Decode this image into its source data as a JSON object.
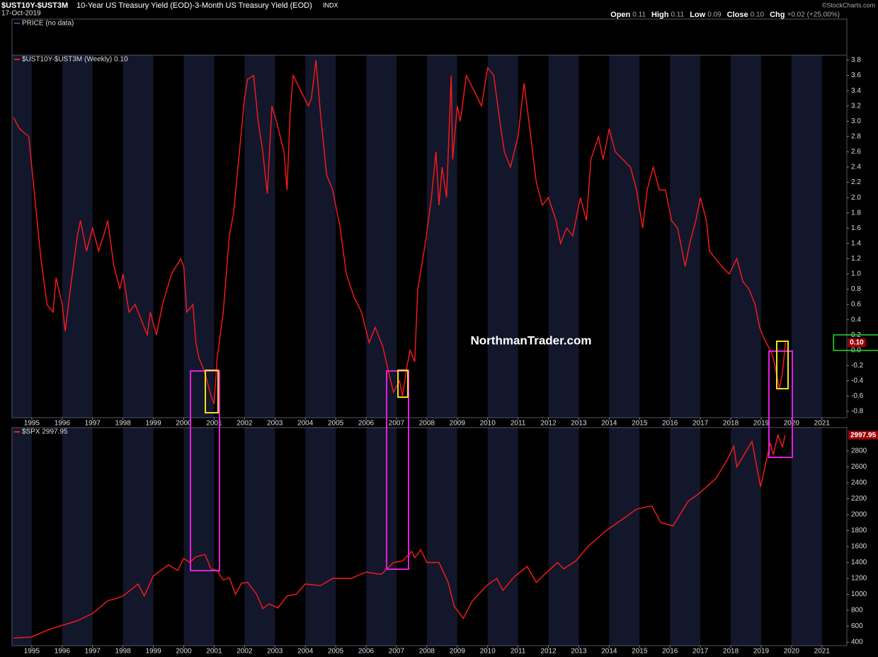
{
  "header": {
    "symbol": "$UST10Y-$UST3M",
    "description": "10-Year US Treasury Yield (EOD)-3-Month US Treasury Yield (EOD)",
    "exchange": "INDX",
    "date": "17-Oct-2019",
    "credit": "©StockCharts.com",
    "stats": [
      {
        "label": "Open",
        "value": "0.11"
      },
      {
        "label": "High",
        "value": "0.11"
      },
      {
        "label": "Low",
        "value": "0.09"
      },
      {
        "label": "Close",
        "value": "0.10"
      },
      {
        "label": "Chg",
        "value": "+0.02 (+25.00%)"
      }
    ]
  },
  "price_panel": {
    "label": "PRICE (no data)"
  },
  "watermark": "NorthmanTrader.com",
  "chart_data": [
    {
      "type": "line",
      "legend": "$UST10Y-$UST3M (Weekly) 0.10",
      "color": "#ff1a1a",
      "bands": true,
      "last": {
        "value": 0.1,
        "label": "0.10"
      },
      "xlim": [
        1994.35,
        2021.82
      ],
      "xticks": [
        1995,
        1996,
        1997,
        1998,
        1999,
        2000,
        2001,
        2002,
        2003,
        2004,
        2005,
        2006,
        2007,
        2008,
        2009,
        2010,
        2011,
        2012,
        2013,
        2014,
        2015,
        2016,
        2017,
        2018,
        2019,
        2020,
        2021
      ],
      "ylim": [
        -0.883,
        3.865
      ],
      "yticks": [
        -0.8,
        -0.6,
        -0.4,
        -0.2,
        {
          "value": 0,
          "label": "0.0"
        },
        0.2,
        0.4,
        0.6,
        0.8,
        {
          "value": 1,
          "label": "1.0"
        },
        1.2,
        1.4,
        1.6,
        1.8,
        {
          "value": 2,
          "label": "2.0"
        },
        2.2,
        2.4,
        2.6,
        2.8,
        {
          "value": 3,
          "label": "3.0"
        },
        3.2,
        3.4,
        3.6,
        3.8
      ],
      "x": [
        1994.4,
        1994.6,
        1994.9,
        1995.1,
        1995.3,
        1995.5,
        1995.7,
        1995.8,
        1996.0,
        1996.1,
        1996.3,
        1996.5,
        1996.6,
        1996.8,
        1997.0,
        1997.2,
        1997.4,
        1997.5,
        1997.7,
        1997.9,
        1998.0,
        1998.2,
        1998.4,
        1998.6,
        1998.8,
        1998.9,
        1999.1,
        1999.3,
        1999.6,
        1999.9,
        2000.0,
        2000.1,
        2000.3,
        2000.4,
        2000.5,
        2000.7,
        2000.9,
        2001.0,
        2001.1,
        2001.3,
        2001.5,
        2001.64,
        2002.0,
        2002.1,
        2002.3,
        2002.45,
        2002.6,
        2002.75,
        2002.9,
        2003.05,
        2003.3,
        2003.4,
        2003.5,
        2003.6,
        2003.85,
        2004.1,
        2004.2,
        2004.35,
        2004.5,
        2004.7,
        2004.9,
        2005.15,
        2005.35,
        2005.6,
        2005.85,
        2006.1,
        2006.3,
        2006.55,
        2006.75,
        2006.9,
        2007.1,
        2007.2,
        2007.35,
        2007.45,
        2007.6,
        2007.7,
        2007.95,
        2008.15,
        2008.3,
        2008.4,
        2008.5,
        2008.65,
        2008.8,
        2008.85,
        2009.0,
        2009.1,
        2009.3,
        2009.55,
        2009.8,
        2010.0,
        2010.2,
        2010.4,
        2010.55,
        2010.75,
        2011.0,
        2011.2,
        2011.45,
        2011.6,
        2011.8,
        2012.0,
        2012.25,
        2012.4,
        2012.6,
        2012.8,
        2013.05,
        2013.25,
        2013.4,
        2013.65,
        2013.8,
        2014.0,
        2014.2,
        2014.45,
        2014.7,
        2014.9,
        2015.1,
        2015.25,
        2015.45,
        2015.65,
        2015.85,
        2016.05,
        2016.25,
        2016.5,
        2016.65,
        2016.85,
        2017.0,
        2017.2,
        2017.3,
        2017.5,
        2017.7,
        2017.95,
        2018.2,
        2018.4,
        2018.6,
        2018.8,
        2018.95,
        2019.1,
        2019.3,
        2019.4,
        2019.6,
        2019.7,
        2019.8
      ],
      "values": [
        3.05,
        2.9,
        2.8,
        2.0,
        1.2,
        0.6,
        0.5,
        0.95,
        0.6,
        0.25,
        0.9,
        1.5,
        1.7,
        1.3,
        1.6,
        1.3,
        1.55,
        1.7,
        1.1,
        0.8,
        1.0,
        0.5,
        0.6,
        0.4,
        0.2,
        0.5,
        0.2,
        0.6,
        1.0,
        1.2,
        1.1,
        0.5,
        0.6,
        0.1,
        -0.1,
        -0.3,
        -0.6,
        -0.7,
        -0.1,
        0.5,
        1.5,
        1.8,
        3.3,
        3.55,
        3.6,
        3.0,
        2.6,
        2.05,
        3.2,
        3.0,
        2.6,
        2.1,
        3.1,
        3.6,
        3.4,
        3.2,
        3.3,
        3.8,
        3.1,
        2.3,
        2.1,
        1.6,
        1.0,
        0.7,
        0.5,
        0.1,
        0.3,
        0.05,
        -0.3,
        -0.55,
        -0.4,
        -0.6,
        -0.2,
        0.0,
        -0.15,
        0.8,
        1.4,
        2.0,
        2.6,
        1.9,
        2.4,
        2.0,
        3.6,
        2.5,
        3.2,
        3.0,
        3.6,
        3.4,
        3.2,
        3.7,
        3.6,
        3.0,
        2.6,
        2.4,
        2.8,
        3.5,
        2.7,
        2.2,
        1.9,
        2.0,
        1.7,
        1.4,
        1.6,
        1.5,
        2.0,
        1.7,
        2.5,
        2.8,
        2.5,
        2.9,
        2.6,
        2.5,
        2.4,
        2.1,
        1.6,
        2.1,
        2.4,
        2.1,
        2.1,
        1.7,
        1.6,
        1.1,
        1.4,
        1.7,
        2.0,
        1.7,
        1.3,
        1.2,
        1.1,
        1.0,
        1.2,
        0.9,
        0.8,
        0.6,
        0.3,
        0.15,
        0.0,
        -0.1,
        -0.5,
        -0.3,
        0.1
      ]
    },
    {
      "type": "line",
      "legend": "$SPX 2997.95",
      "color": "#ff1a1a",
      "bands": true,
      "last": 2997.95,
      "xlim": [
        1994.35,
        2021.82
      ],
      "xticks": [
        1995,
        1996,
        1997,
        1998,
        1999,
        2000,
        2001,
        2002,
        2003,
        2004,
        2005,
        2006,
        2007,
        2008,
        2009,
        2010,
        2011,
        2012,
        2013,
        2014,
        2015,
        2016,
        2017,
        2018,
        2019,
        2020,
        2021
      ],
      "ylim": [
        356,
        3093
      ],
      "yticks": [
        400,
        600,
        800,
        1000,
        1200,
        1400,
        1600,
        1800,
        2000,
        2200,
        2400,
        2600,
        2800
      ],
      "x": [
        1994.4,
        1995.0,
        1995.5,
        1996.0,
        1996.5,
        1997.0,
        1997.5,
        1997.8,
        1998.0,
        1998.5,
        1998.7,
        1999.0,
        1999.5,
        1999.8,
        2000.0,
        2000.2,
        2000.4,
        2000.7,
        2000.9,
        2001.1,
        2001.3,
        2001.5,
        2001.7,
        2001.9,
        2002.1,
        2002.4,
        2002.6,
        2002.8,
        2003.1,
        2003.4,
        2003.7,
        2004.0,
        2004.5,
        2004.9,
        2005.5,
        2006.0,
        2006.5,
        2006.9,
        2007.2,
        2007.5,
        2007.6,
        2007.8,
        2008.0,
        2008.4,
        2008.7,
        2008.9,
        2009.2,
        2009.5,
        2010.0,
        2010.3,
        2010.5,
        2010.9,
        2011.3,
        2011.6,
        2011.9,
        2012.3,
        2012.5,
        2012.9,
        2013.3,
        2013.9,
        2014.5,
        2014.9,
        2015.4,
        2015.7,
        2016.1,
        2016.6,
        2016.9,
        2017.5,
        2017.9,
        2018.1,
        2018.2,
        2018.7,
        2018.98,
        2019.3,
        2019.4,
        2019.55,
        2019.7,
        2019.79
      ],
      "values": [
        450,
        465,
        550,
        610,
        670,
        760,
        920,
        950,
        980,
        1130,
        980,
        1230,
        1370,
        1300,
        1450,
        1400,
        1470,
        1500,
        1320,
        1300,
        1180,
        1210,
        1000,
        1140,
        1150,
        1000,
        820,
        880,
        830,
        980,
        1000,
        1130,
        1110,
        1200,
        1200,
        1280,
        1250,
        1400,
        1420,
        1540,
        1460,
        1560,
        1400,
        1400,
        1150,
        850,
        700,
        920,
        1120,
        1200,
        1050,
        1230,
        1350,
        1150,
        1260,
        1400,
        1320,
        1420,
        1600,
        1800,
        1960,
        2070,
        2110,
        1900,
        1860,
        2170,
        2250,
        2450,
        2700,
        2860,
        2600,
        2920,
        2350,
        2900,
        2750,
        3000,
        2850,
        2998
      ]
    }
  ]
}
